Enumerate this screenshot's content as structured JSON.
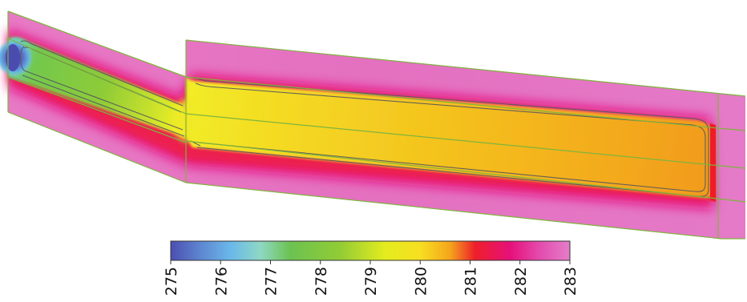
{
  "colorbar": {
    "min": 275,
    "max": 283,
    "tick_labels": [
      "275",
      "276",
      "277",
      "278",
      "279",
      "280",
      "281",
      "282",
      "283"
    ],
    "stops": [
      {
        "value": 275.0,
        "color": "#4b4fb3"
      },
      {
        "value": 275.6,
        "color": "#5e86d0"
      },
      {
        "value": 276.2,
        "color": "#6ab8ea"
      },
      {
        "value": 276.8,
        "color": "#8ed8c4"
      },
      {
        "value": 277.4,
        "color": "#6cc251"
      },
      {
        "value": 278.4,
        "color": "#92cc35"
      },
      {
        "value": 279.3,
        "color": "#e4ec1e"
      },
      {
        "value": 280.0,
        "color": "#f6df21"
      },
      {
        "value": 280.6,
        "color": "#f5a51c"
      },
      {
        "value": 281.1,
        "color": "#ee1f2a"
      },
      {
        "value": 281.8,
        "color": "#e6107a"
      },
      {
        "value": 282.4,
        "color": "#e34cae"
      },
      {
        "value": 283.0,
        "color": "#e47ec9"
      }
    ]
  },
  "colors": {
    "outer_domain": "#e46bbb",
    "boundary_layer": "#e8106e",
    "mesh_lines": "#7fb43d",
    "isolines": "#505058",
    "inlet_cold": "#4b4fb3",
    "first_segment_core": "#7bc94a",
    "second_segment_core": "#f4b31c",
    "colorbar_outline": "#333333"
  }
}
